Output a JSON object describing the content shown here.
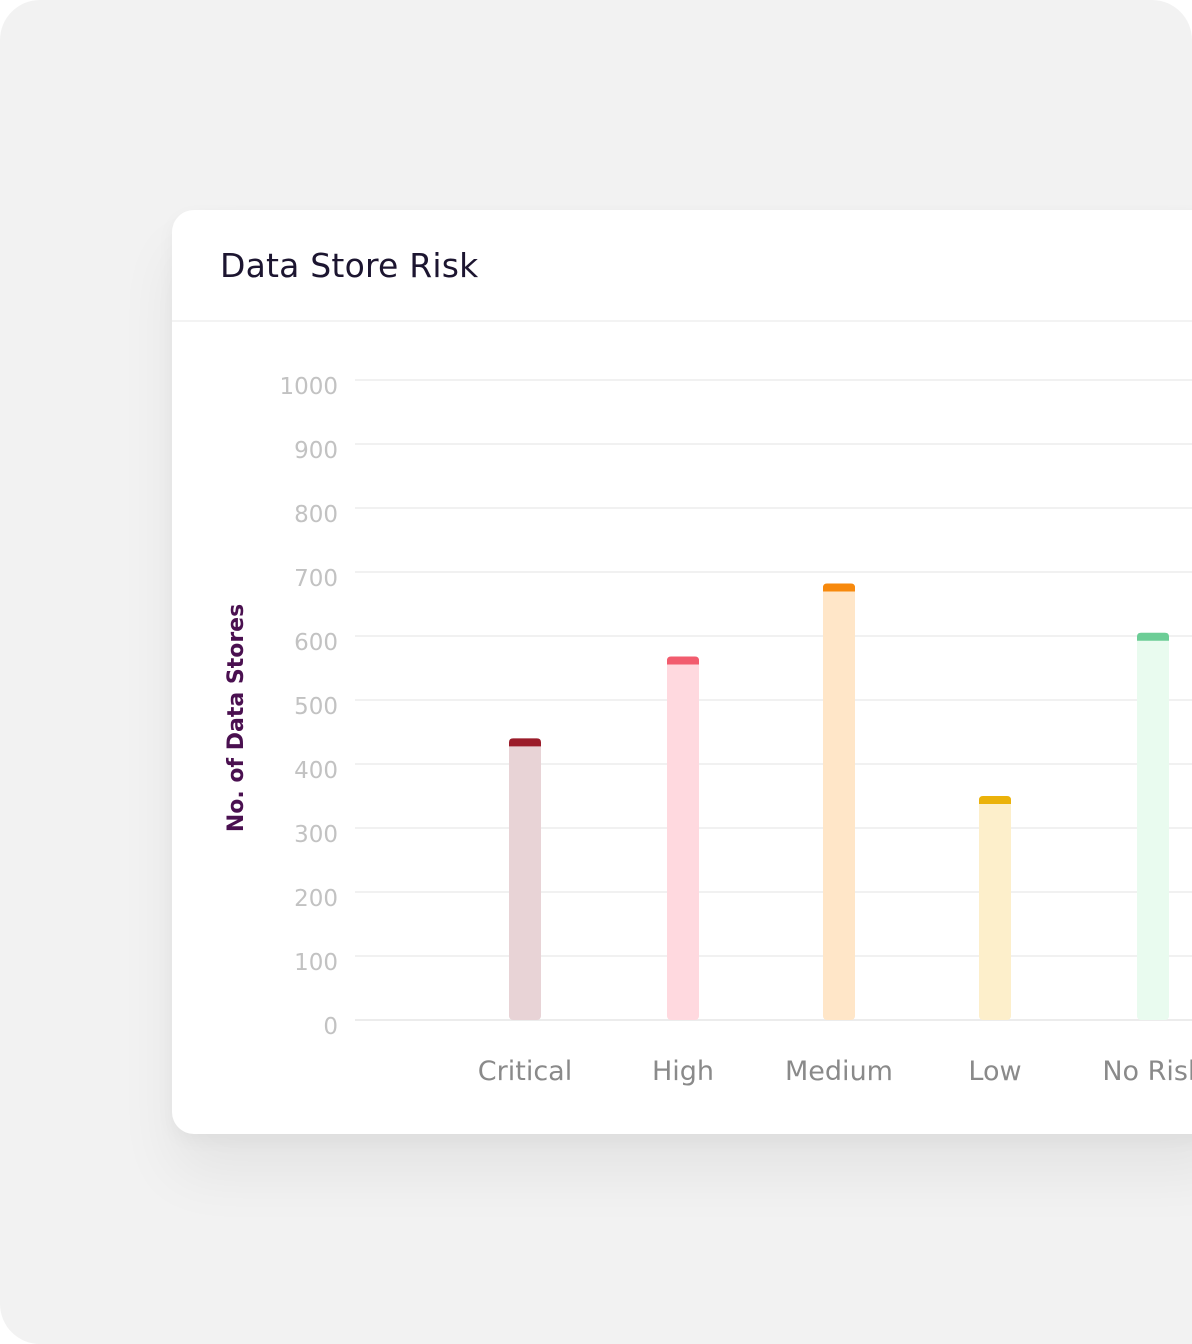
{
  "card": {
    "title": "Data Store Risk"
  },
  "chart_data": {
    "type": "bar",
    "title": "Data Store Risk",
    "ylabel": "No. of Data Stores",
    "xlabel": "",
    "ylim": [
      0,
      1000
    ],
    "yticks": [
      0,
      100,
      200,
      300,
      400,
      500,
      600,
      700,
      800,
      900,
      1000
    ],
    "grid": true,
    "categories": [
      "Critical",
      "High",
      "Medium",
      "Low",
      "No Risk"
    ],
    "values": [
      440,
      568,
      682,
      350,
      605
    ],
    "bar_colors": [
      "#e8d3d6",
      "#ffd9df",
      "#ffe6c8",
      "#fdefcb",
      "#e9fbef"
    ],
    "cap_colors": [
      "#9b1c2a",
      "#f25c6e",
      "#f7890d",
      "#ebb20a",
      "#6ccd96"
    ]
  }
}
